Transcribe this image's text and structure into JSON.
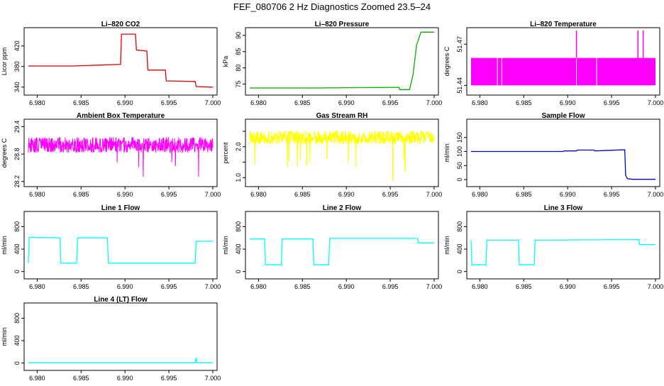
{
  "figure_title": "FEF_080706  2 Hz Diagnostics Zoomed 23.5–24",
  "chart_data": [
    {
      "type": "line",
      "title": "Li–820 CO2",
      "ylabel": "Licor ppm",
      "color": "#dd0000",
      "xlim": [
        6.979,
        7.0
      ],
      "ylim": [
        330,
        450
      ],
      "xticks": [
        6.98,
        6.985,
        6.99,
        6.995,
        7.0
      ],
      "xtick_labels": [
        "6.980",
        "6.985",
        "6.990",
        "6.995",
        "7.000"
      ],
      "yticks": [
        340,
        380,
        420
      ],
      "ytick_labels": [
        "340",
        "380",
        "420"
      ],
      "series": [
        {
          "x": [
            6.979,
            6.984,
            6.9895,
            6.9896,
            6.9912,
            6.9913,
            6.9925,
            6.9926,
            6.9946,
            6.9947,
            6.998,
            6.9981,
            7.0
          ],
          "y": [
            381,
            381,
            384,
            443,
            443,
            412,
            410,
            373,
            373,
            352,
            351,
            341,
            340
          ]
        }
      ]
    },
    {
      "type": "line",
      "title": "Li–820 Pressure",
      "ylabel": "kPa",
      "color": "#00aa00",
      "xlim": [
        6.979,
        7.0
      ],
      "ylim": [
        72.5,
        91.5
      ],
      "xticks": [
        6.98,
        6.985,
        6.99,
        6.995,
        7.0
      ],
      "xtick_labels": [
        "6.980",
        "6.985",
        "6.990",
        "6.995",
        "7.000"
      ],
      "yticks": [
        75,
        80,
        85,
        90
      ],
      "ytick_labels": [
        "75",
        "80",
        "85",
        "90"
      ],
      "series": [
        {
          "x": [
            6.979,
            6.986,
            6.996,
            6.9961,
            6.9972,
            6.9976,
            6.998,
            6.9985,
            7.0
          ],
          "y": [
            73.8,
            73.8,
            74.0,
            73.3,
            73.3,
            78,
            87,
            91,
            91
          ]
        }
      ]
    },
    {
      "type": "area",
      "title": "Li–820 Temperature",
      "ylabel": "degrees C",
      "color": "#ff00ff",
      "xlim": [
        6.979,
        7.0
      ],
      "ylim": [
        51.435,
        51.48
      ],
      "xticks": [
        6.98,
        6.985,
        6.99,
        6.995,
        7.0
      ],
      "xtick_labels": [
        "6.980",
        "6.985",
        "6.990",
        "6.995",
        "7.000"
      ],
      "yticks": [
        51.44,
        51.47
      ],
      "ytick_labels": [
        "51.44",
        "51.47"
      ],
      "band": [
        51.44,
        51.46
      ],
      "spikes": [
        6.991,
        6.998,
        6.9986
      ]
    },
    {
      "type": "line",
      "title": "Ambient Box Temperature",
      "ylabel": "degrees C",
      "color": "#ff00ff",
      "xlim": [
        6.979,
        7.0
      ],
      "ylim": [
        28.15,
        29.5
      ],
      "xticks": [
        6.98,
        6.985,
        6.99,
        6.995,
        7.0
      ],
      "xtick_labels": [
        "6.980",
        "6.985",
        "6.990",
        "6.995",
        "7.000"
      ],
      "yticks": [
        28.2,
        28.8,
        29.4
      ],
      "ytick_labels": [
        "28.2",
        "28.8",
        "29.4"
      ],
      "noise_center": 29.0,
      "noise_amp": 0.17
    },
    {
      "type": "line",
      "title": "Gas Stream RH",
      "ylabel": "percent",
      "color": "#ffff00",
      "xlim": [
        6.979,
        7.0
      ],
      "ylim": [
        0.8,
        2.8
      ],
      "xticks": [
        6.98,
        6.985,
        6.99,
        6.995,
        7.0
      ],
      "xtick_labels": [
        "6.980",
        "6.985",
        "6.990",
        "6.995",
        "7.000"
      ],
      "yticks": [
        1.0,
        1.5,
        2.0,
        2.5
      ],
      "ytick_labels": [
        "1.0",
        "",
        "2.0",
        ""
      ],
      "noise_center": 2.3,
      "noise_amp": 0.22,
      "dips": [
        {
          "x": 6.9855,
          "y": 1.4
        },
        {
          "x": 6.9878,
          "y": 1.6
        },
        {
          "x": 6.9953,
          "y": 0.9
        },
        {
          "x": 6.9967,
          "y": 1.2
        }
      ]
    },
    {
      "type": "line",
      "title": "Sample Flow",
      "ylabel": "ml/min",
      "color": "#0000cc",
      "xlim": [
        6.979,
        7.0
      ],
      "ylim": [
        -15,
        205
      ],
      "xticks": [
        6.98,
        6.985,
        6.99,
        6.995,
        7.0
      ],
      "xtick_labels": [
        "6.980",
        "6.985",
        "6.990",
        "6.995",
        "7.000"
      ],
      "yticks": [
        0,
        50,
        100,
        150
      ],
      "ytick_labels": [
        "0",
        "50",
        "100",
        "150"
      ],
      "series": [
        {
          "x": [
            6.979,
            6.9895,
            6.9896,
            6.991,
            6.9911,
            6.993,
            6.9931,
            6.9965,
            6.9966,
            6.9968,
            6.9975,
            7.0
          ],
          "y": [
            100,
            100,
            102,
            102,
            105,
            105,
            102,
            106,
            15,
            3,
            1,
            1
          ]
        }
      ]
    },
    {
      "type": "line",
      "title": "Line 1 Flow",
      "ylabel": "ml/min",
      "color": "#00ffff",
      "xlim": [
        6.979,
        7.0
      ],
      "ylim": [
        -80,
        1020
      ],
      "xticks": [
        6.98,
        6.985,
        6.99,
        6.995,
        7.0
      ],
      "xtick_labels": [
        "6.980",
        "6.985",
        "6.990",
        "6.995",
        "7.000"
      ],
      "yticks": [
        0,
        400,
        800
      ],
      "ytick_labels": [
        "0",
        "400",
        "800"
      ],
      "series": [
        {
          "x": [
            6.979,
            6.9791,
            6.9826,
            6.9827,
            6.9845,
            6.9846,
            6.988,
            6.9881,
            6.998,
            6.9981,
            7.0
          ],
          "y": [
            150,
            610,
            600,
            150,
            150,
            600,
            600,
            150,
            150,
            540,
            540
          ]
        }
      ]
    },
    {
      "type": "line",
      "title": "Line 2 Flow",
      "ylabel": "ml/min",
      "color": "#00ffff",
      "xlim": [
        6.979,
        7.0
      ],
      "ylim": [
        -80,
        1020
      ],
      "xticks": [
        6.98,
        6.985,
        6.99,
        6.995,
        7.0
      ],
      "xtick_labels": [
        "6.980",
        "6.985",
        "6.990",
        "6.995",
        "7.000"
      ],
      "yticks": [
        0,
        400,
        800
      ],
      "ytick_labels": [
        "0",
        "400",
        "800"
      ],
      "series": [
        {
          "x": [
            6.979,
            6.9807,
            6.9808,
            6.9826,
            6.9827,
            6.9862,
            6.9863,
            6.988,
            6.9881,
            6.9981,
            6.9982,
            7.0
          ],
          "y": [
            580,
            580,
            120,
            120,
            580,
            580,
            120,
            120,
            590,
            590,
            510,
            510
          ]
        }
      ]
    },
    {
      "type": "line",
      "title": "Line 3 Flow",
      "ylabel": "ml/min",
      "color": "#00ffff",
      "xlim": [
        6.979,
        7.0
      ],
      "ylim": [
        -80,
        1020
      ],
      "xticks": [
        6.98,
        6.985,
        6.99,
        6.995,
        7.0
      ],
      "xtick_labels": [
        "6.980",
        "6.985",
        "6.990",
        "6.995",
        "7.000"
      ],
      "yticks": [
        0,
        400,
        800
      ],
      "ytick_labels": [
        "0",
        "400",
        "800"
      ],
      "series": [
        {
          "x": [
            6.979,
            6.9791,
            6.9807,
            6.9808,
            6.9844,
            6.9845,
            6.9862,
            6.9863,
            6.9981,
            6.9982,
            7.0
          ],
          "y": [
            560,
            120,
            120,
            560,
            560,
            120,
            120,
            560,
            570,
            480,
            480
          ]
        }
      ]
    },
    {
      "type": "line",
      "title": "Line 4 (LT) Flow",
      "ylabel": "ml/min",
      "color": "#00ffff",
      "xlim": [
        6.979,
        7.0
      ],
      "ylim": [
        -80,
        1020
      ],
      "xticks": [
        6.98,
        6.985,
        6.99,
        6.995,
        7.0
      ],
      "xtick_labels": [
        "6.980",
        "6.985",
        "6.990",
        "6.995",
        "7.000"
      ],
      "yticks": [
        0,
        400,
        800
      ],
      "ytick_labels": [
        "0",
        "400",
        "800"
      ],
      "series": [
        {
          "x": [
            6.979,
            6.998,
            6.9981,
            6.9982,
            7.0
          ],
          "y": [
            5,
            5,
            100,
            5,
            5
          ]
        }
      ]
    }
  ]
}
